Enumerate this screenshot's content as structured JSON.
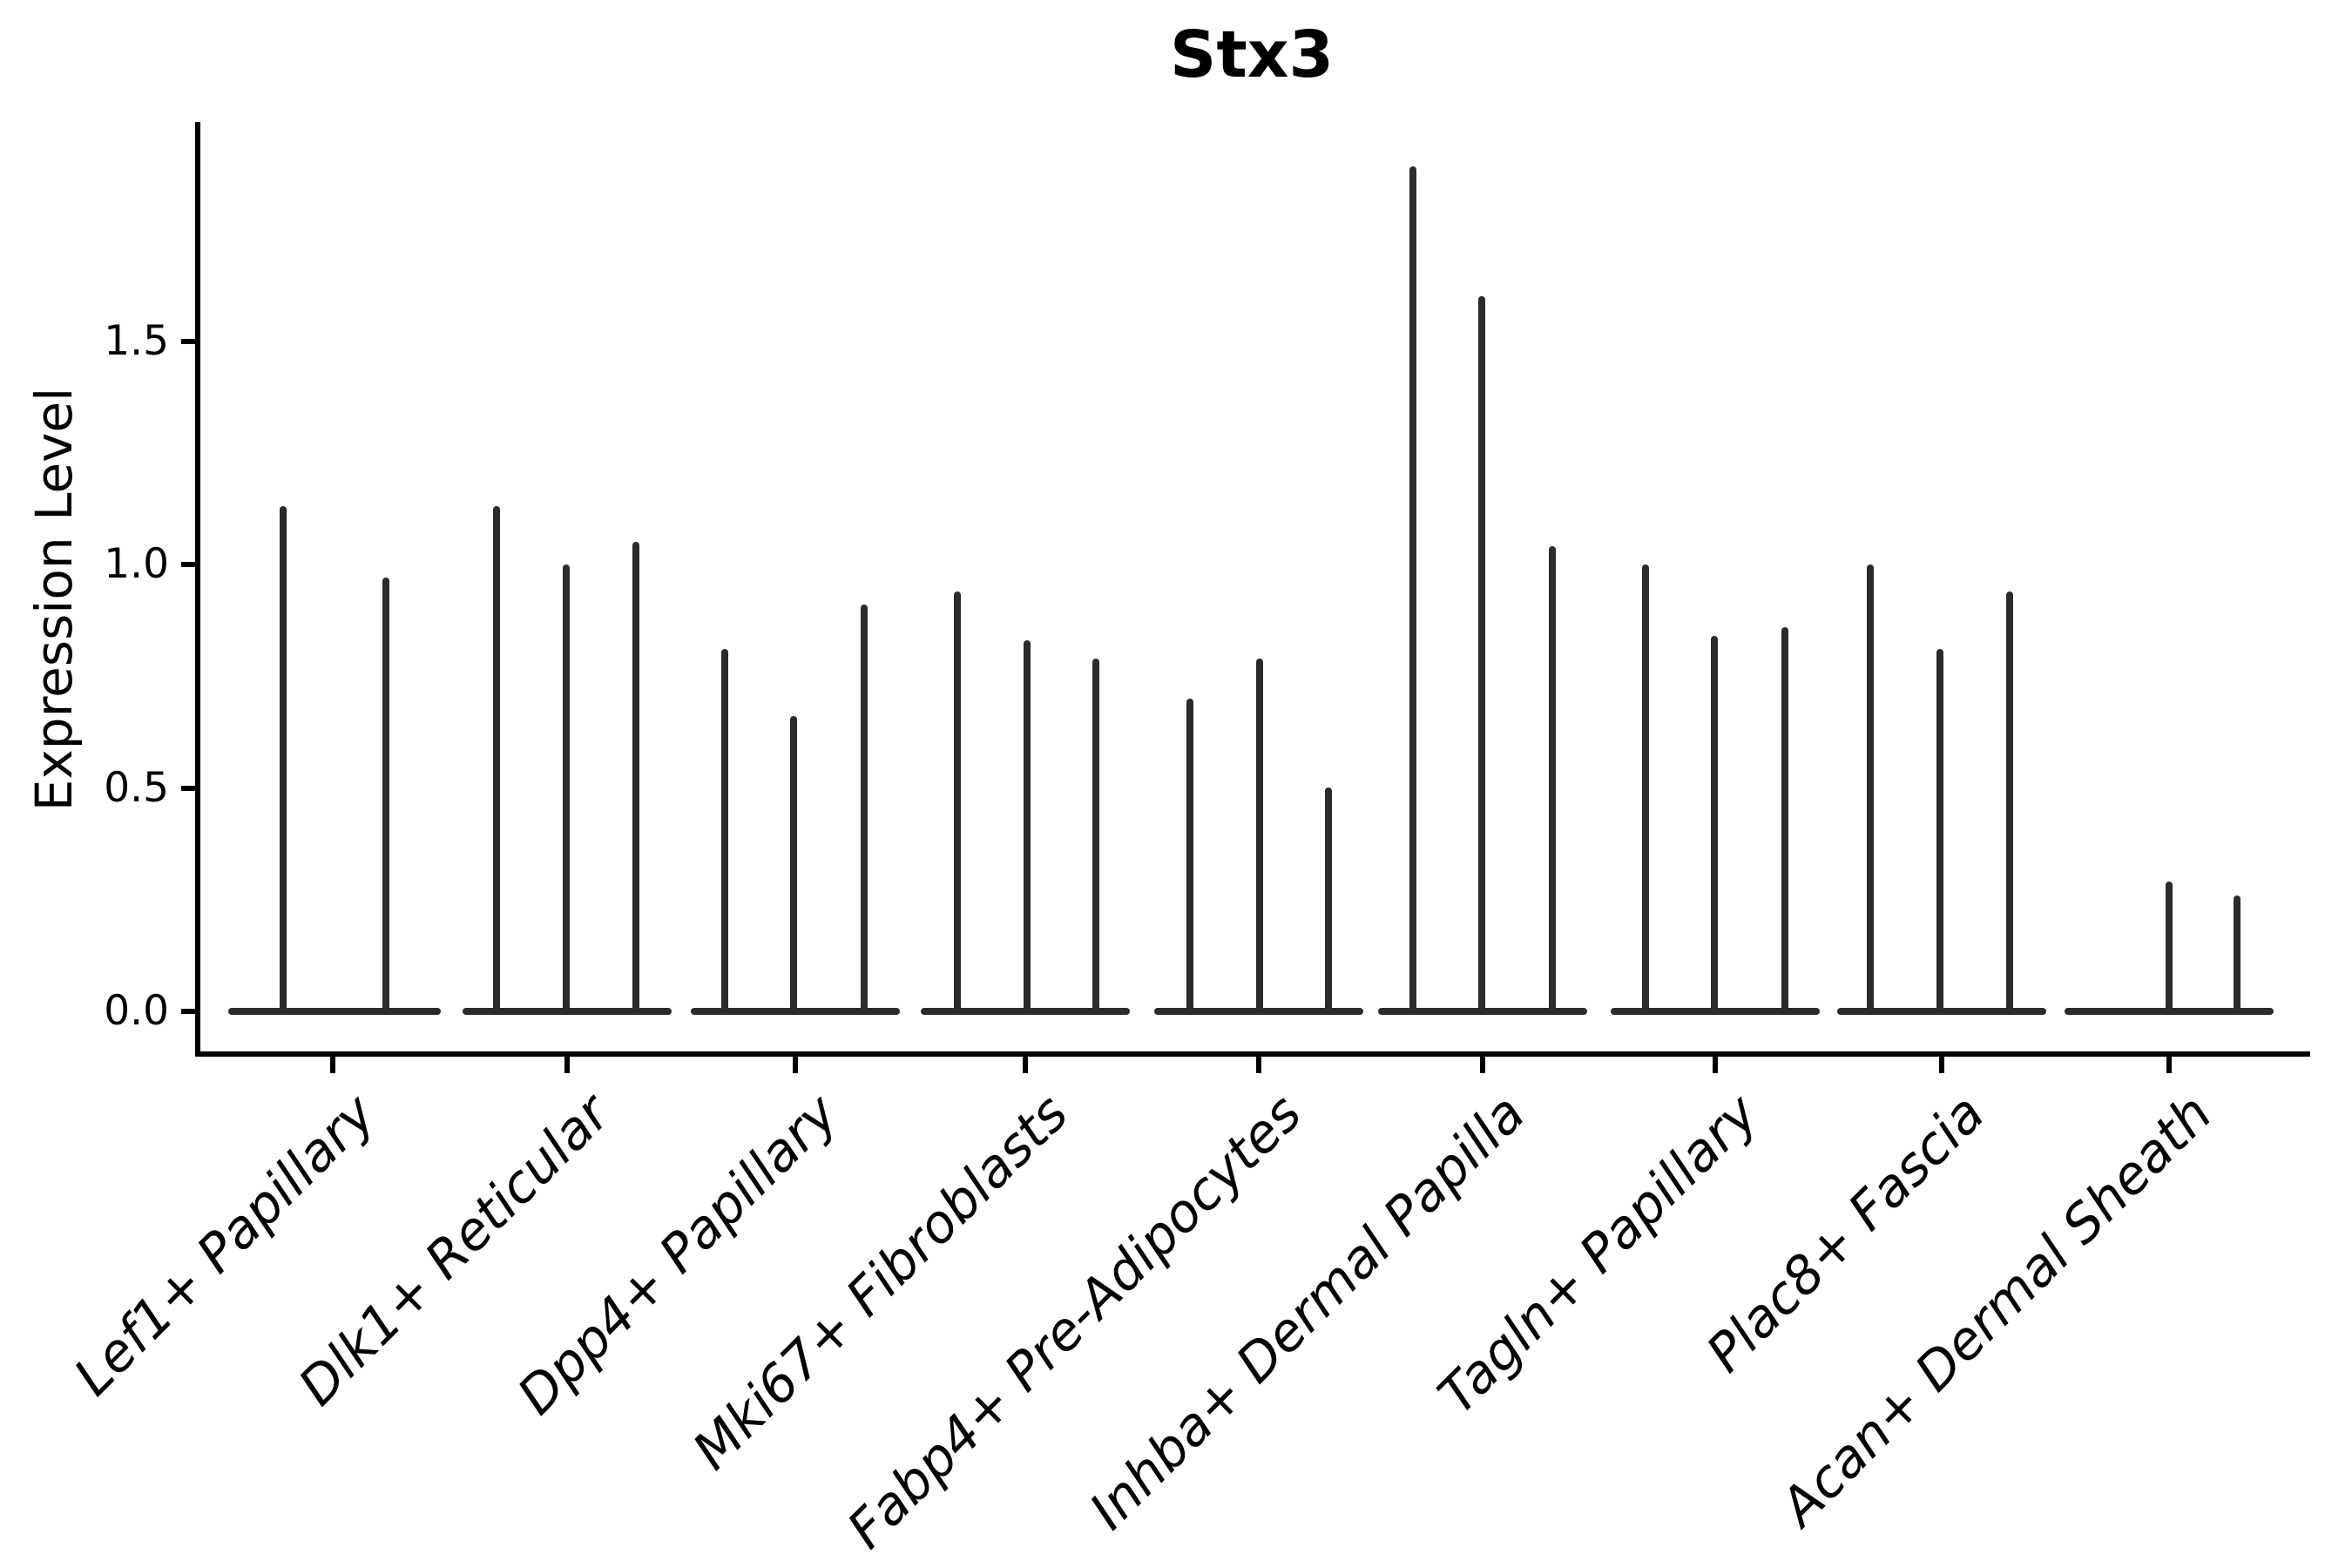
{
  "chart_data": {
    "type": "violin",
    "title": "Stx3",
    "ylabel": "Expression Level",
    "xlabel": "",
    "yticks": [
      "0.0",
      "0.5",
      "1.0",
      "1.5"
    ],
    "ylim": [
      0,
      1.98
    ],
    "grid": false,
    "legend": false,
    "x_label_rotation_deg": 45,
    "colors": {
      "violin": "#2b2b2b",
      "axis": "#000000",
      "background": "#ffffff"
    },
    "categories": [
      {
        "label": "Lef1+ Papillary",
        "tick_x": 382,
        "baseline": [
          262,
          506
        ],
        "violins": [
          {
            "x": 325,
            "max": 1.13
          },
          {
            "x": 443,
            "max": 0.97
          }
        ]
      },
      {
        "label": "Dlk1+ Reticular",
        "tick_x": 651,
        "baseline": [
          531,
          771
        ],
        "violins": [
          {
            "x": 570,
            "max": 1.13
          },
          {
            "x": 650,
            "max": 1.0
          },
          {
            "x": 730,
            "max": 1.05
          }
        ]
      },
      {
        "label": "Dpp4+ Papillary",
        "tick_x": 913,
        "baseline": [
          793,
          1033
        ],
        "violins": [
          {
            "x": 832,
            "max": 0.81
          },
          {
            "x": 911,
            "max": 0.66
          },
          {
            "x": 992,
            "max": 0.91
          }
        ]
      },
      {
        "label": "Mki67+ Fibroblasts",
        "tick_x": 1177,
        "baseline": [
          1057,
          1297
        ],
        "violins": [
          {
            "x": 1099,
            "max": 0.94
          },
          {
            "x": 1179,
            "max": 0.83
          },
          {
            "x": 1258,
            "max": 0.79
          }
        ]
      },
      {
        "label": "Fabp4+ Pre-Adipocytes",
        "tick_x": 1445,
        "baseline": [
          1325,
          1565
        ],
        "violins": [
          {
            "x": 1366,
            "max": 0.7
          },
          {
            "x": 1446,
            "max": 0.79
          },
          {
            "x": 1525,
            "max": 0.5
          }
        ]
      },
      {
        "label": "Inhba+ Dermal Papilla",
        "tick_x": 1702,
        "baseline": [
          1582,
          1822
        ],
        "violins": [
          {
            "x": 1622,
            "max": 1.89
          },
          {
            "x": 1701,
            "max": 1.6
          },
          {
            "x": 1782,
            "max": 1.04
          }
        ]
      },
      {
        "label": "Tagln+ Papillary",
        "tick_x": 1969,
        "baseline": [
          1849,
          2089
        ],
        "violins": [
          {
            "x": 1889,
            "max": 1.0
          },
          {
            "x": 1968,
            "max": 0.84
          },
          {
            "x": 2049,
            "max": 0.86
          }
        ]
      },
      {
        "label": "Plac8+ Fascia",
        "tick_x": 2229,
        "baseline": [
          2109,
          2349
        ],
        "violins": [
          {
            "x": 2147,
            "max": 1.0
          },
          {
            "x": 2227,
            "max": 0.81
          },
          {
            "x": 2307,
            "max": 0.94
          }
        ]
      },
      {
        "label": "Acan+ Dermal Sheath",
        "tick_x": 2490,
        "baseline": [
          2370,
          2610
        ],
        "violins": [
          {
            "x": 2412,
            "max": 0
          },
          {
            "x": 2490,
            "max": 0.29
          },
          {
            "x": 2568,
            "max": 0.26
          }
        ]
      }
    ]
  }
}
